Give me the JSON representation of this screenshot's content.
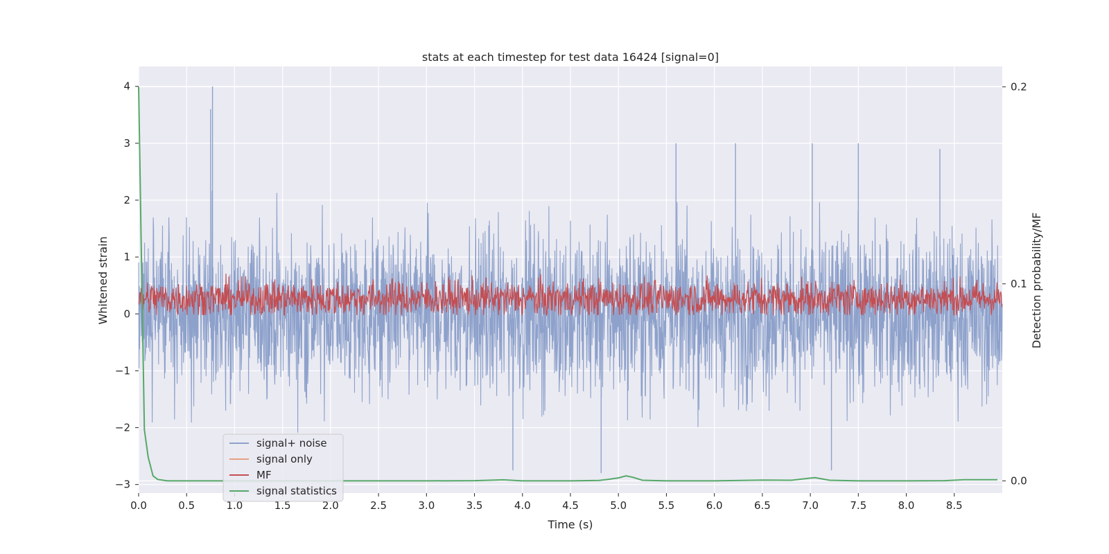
{
  "chart_data": {
    "type": "line",
    "title": "stats at each timestep for test data 16424 [signal=0]",
    "xlabel": "Time (s)",
    "ylabel": "Whitened strain",
    "y2label": "Detection probability/MF",
    "xlim": [
      0.0,
      9.0
    ],
    "ylim": [
      -3.15,
      4.35
    ],
    "y2lim": [
      -0.0062,
      0.2103
    ],
    "xticks": [
      0.0,
      0.5,
      1.0,
      1.5,
      2.0,
      2.5,
      3.0,
      3.5,
      4.0,
      4.5,
      5.0,
      5.5,
      6.0,
      6.5,
      7.0,
      7.5,
      8.0,
      8.5
    ],
    "xtick_labels": [
      "0.0",
      "0.5",
      "1.0",
      "1.5",
      "2.0",
      "2.5",
      "3.0",
      "3.5",
      "4.0",
      "4.5",
      "5.0",
      "5.5",
      "6.0",
      "6.5",
      "7.0",
      "7.5",
      "8.0",
      "8.5"
    ],
    "yticks": [
      -3,
      -2,
      -1,
      0,
      1,
      2,
      3,
      4
    ],
    "ytick_labels": [
      "−3",
      "−2",
      "−1",
      "0",
      "1",
      "2",
      "3",
      "4"
    ],
    "y2ticks": [
      0.0,
      0.1,
      0.2
    ],
    "y2tick_labels": [
      "0.0",
      "0.1",
      "0.2"
    ],
    "grid": true,
    "legend_position": "lower-left",
    "colors": {
      "signal_noise": "#8da1cb",
      "signal_only": "#e7a07f",
      "mf": "#c44e52",
      "stats": "#55a868",
      "background": "#eaeaf2",
      "grid": "#ffffff"
    },
    "series": [
      {
        "name": "signal+ noise",
        "axis": "left",
        "description_range": [
          -2.8,
          4.0
        ],
        "peaks": [
          {
            "x": 0.77,
            "y": 4.0
          },
          {
            "x": 0.75,
            "y": 3.6
          },
          {
            "x": 5.6,
            "y": 3.0
          },
          {
            "x": 6.22,
            "y": 3.0
          },
          {
            "x": 7.02,
            "y": 3.0
          },
          {
            "x": 7.5,
            "y": 3.0
          },
          {
            "x": 8.35,
            "y": 2.9
          },
          {
            "x": 3.9,
            "y": -2.75
          },
          {
            "x": 4.82,
            "y": -2.8
          },
          {
            "x": 7.22,
            "y": -2.75
          }
        ]
      },
      {
        "name": "signal only",
        "axis": "left",
        "values": []
      },
      {
        "name": "MF",
        "axis": "left",
        "description_range": [
          0.0,
          1.0
        ]
      },
      {
        "name": "signal statistics",
        "axis": "right",
        "x": [
          0.0,
          0.03,
          0.06,
          0.1,
          0.15,
          0.2,
          0.3,
          0.5,
          1.0,
          2.0,
          3.0,
          3.5,
          3.8,
          4.0,
          4.5,
          4.8,
          4.9,
          5.0,
          5.08,
          5.15,
          5.25,
          5.5,
          6.0,
          6.5,
          6.8,
          7.0,
          7.05,
          7.2,
          7.5,
          8.0,
          8.4,
          8.6,
          8.95
        ],
        "values": [
          0.2,
          0.11,
          0.026,
          0.012,
          0.0025,
          0.0007,
          0.0,
          0.0,
          0.0,
          0.0,
          0.0,
          0.0001,
          0.0005,
          0.0,
          0.0,
          0.0002,
          0.0008,
          0.0015,
          0.0025,
          0.0018,
          0.0003,
          0.0,
          0.0,
          0.0004,
          0.0003,
          0.0014,
          0.0016,
          0.0003,
          0.0,
          0.0,
          0.0001,
          0.0006,
          0.0006
        ]
      }
    ]
  },
  "legend": [
    {
      "label": "signal+ noise",
      "color": "#8da1cb"
    },
    {
      "label": "signal only",
      "color": "#e7a07f"
    },
    {
      "label": "MF",
      "color": "#c44e52"
    },
    {
      "label": "signal statistics",
      "color": "#55a868"
    }
  ]
}
